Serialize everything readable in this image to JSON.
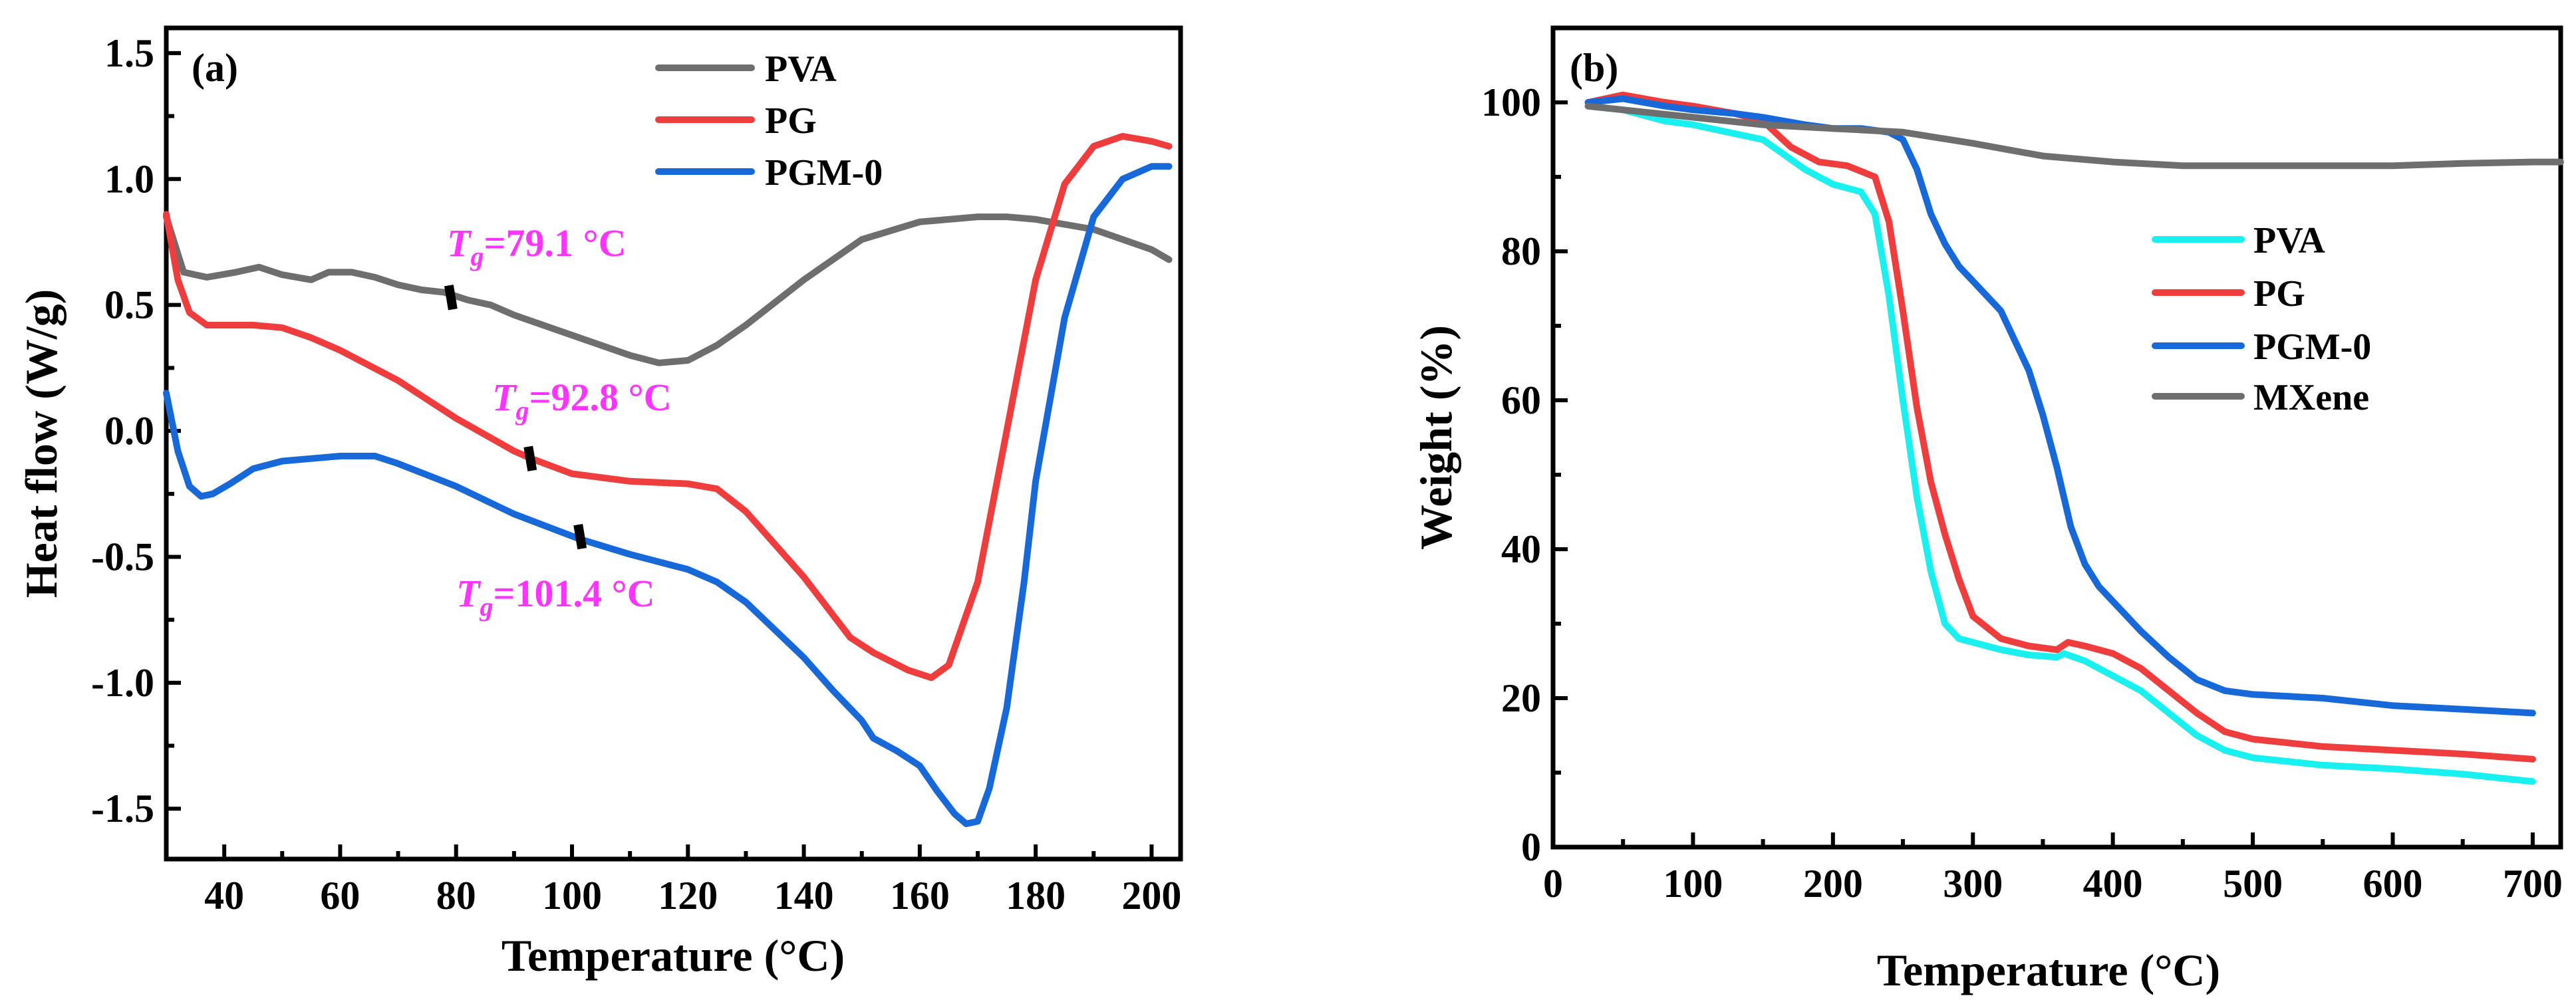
{
  "chart_data": [
    {
      "panel": "(a)",
      "type": "line",
      "title": "",
      "xlabel": "Temperature (°C)",
      "ylabel": "Heat flow (W/g)",
      "xlim": [
        30,
        205
      ],
      "ylim": [
        -1.7,
        1.6
      ],
      "xticks": [
        40,
        60,
        80,
        100,
        120,
        140,
        160,
        180,
        200
      ],
      "yticks": [
        -1.5,
        -1.0,
        -0.5,
        0.0,
        0.5,
        1.0,
        1.5
      ],
      "ytick_labels": [
        "-1.5",
        "-1.0",
        "-0.5",
        "0.0",
        "0.5",
        "1.0",
        "1.5"
      ],
      "legend": [
        "PVA",
        "PG",
        "PGM-0"
      ],
      "legend_position": "top-right",
      "series": [
        {
          "name": "PVA",
          "color": "#6e6e6e",
          "x": [
            30,
            33,
            37,
            42,
            46,
            50,
            55,
            58,
            62,
            66,
            70,
            74,
            78,
            82,
            86,
            90,
            100,
            110,
            115,
            120,
            125,
            130,
            140,
            150,
            160,
            170,
            175,
            180,
            190,
            200,
            203
          ],
          "y": [
            0.85,
            0.63,
            0.61,
            0.63,
            0.65,
            0.62,
            0.6,
            0.63,
            0.63,
            0.61,
            0.58,
            0.56,
            0.55,
            0.52,
            0.5,
            0.46,
            0.38,
            0.3,
            0.27,
            0.28,
            0.34,
            0.42,
            0.6,
            0.76,
            0.83,
            0.85,
            0.85,
            0.84,
            0.8,
            0.72,
            0.68
          ]
        },
        {
          "name": "PG",
          "color": "#ef3c3c",
          "x": [
            30,
            32,
            34,
            37,
            40,
            45,
            50,
            55,
            60,
            70,
            80,
            90,
            93,
            100,
            110,
            120,
            125,
            130,
            140,
            148,
            152,
            158,
            162,
            165,
            170,
            175,
            180,
            185,
            190,
            195,
            200,
            203
          ],
          "y": [
            0.86,
            0.6,
            0.47,
            0.42,
            0.42,
            0.42,
            0.41,
            0.37,
            0.32,
            0.2,
            0.05,
            -0.08,
            -0.11,
            -0.17,
            -0.2,
            -0.21,
            -0.23,
            -0.32,
            -0.58,
            -0.82,
            -0.88,
            -0.95,
            -0.98,
            -0.93,
            -0.6,
            0.0,
            0.6,
            0.98,
            1.13,
            1.17,
            1.15,
            1.13
          ]
        },
        {
          "name": "PGM-0",
          "color": "#1768d8",
          "x": [
            30,
            32,
            34,
            36,
            38,
            41,
            45,
            50,
            55,
            60,
            66,
            70,
            80,
            90,
            101.4,
            110,
            120,
            125,
            130,
            140,
            145,
            150,
            152,
            156,
            160,
            163,
            166,
            168,
            170,
            172,
            175,
            178,
            180,
            185,
            190,
            195,
            200,
            203
          ],
          "y": [
            0.15,
            -0.08,
            -0.22,
            -0.26,
            -0.25,
            -0.21,
            -0.15,
            -0.12,
            -0.11,
            -0.1,
            -0.1,
            -0.13,
            -0.22,
            -0.33,
            -0.43,
            -0.49,
            -0.55,
            -0.6,
            -0.68,
            -0.9,
            -1.03,
            -1.15,
            -1.22,
            -1.27,
            -1.33,
            -1.43,
            -1.52,
            -1.56,
            -1.55,
            -1.42,
            -1.1,
            -0.6,
            -0.2,
            0.45,
            0.85,
            1.0,
            1.05,
            1.05
          ]
        }
      ],
      "annotations": [
        {
          "T": "T",
          "sub": "g",
          "value": "=79.1 °C",
          "x": 79.1,
          "y": 0.53
        },
        {
          "T": "T",
          "sub": "g",
          "value": "=92.8 °C",
          "x": 92.8,
          "y": -0.11
        },
        {
          "T": "T",
          "sub": "g",
          "value": "=101.4 °C",
          "x": 101.4,
          "y": -0.42
        }
      ]
    },
    {
      "panel": "(b)",
      "type": "line",
      "title": "",
      "xlabel": "Temperature (°C)",
      "ylabel": "Weight (%)",
      "xlim": [
        0,
        720
      ],
      "ylim": [
        0,
        110
      ],
      "xticks": [
        0,
        100,
        200,
        300,
        400,
        500,
        600,
        700
      ],
      "yticks": [
        0,
        20,
        40,
        60,
        80,
        100
      ],
      "legend": [
        "PVA",
        "PG",
        "PGM-0",
        "MXene"
      ],
      "legend_position": "center-right",
      "series": [
        {
          "name": "PVA",
          "color": "#19f0f0",
          "x": [
            25,
            50,
            80,
            100,
            150,
            180,
            200,
            220,
            230,
            240,
            250,
            260,
            270,
            280,
            290,
            300,
            320,
            340,
            360,
            365,
            380,
            400,
            420,
            440,
            460,
            480,
            500,
            550,
            600,
            650,
            700
          ],
          "y": [
            99.5,
            99,
            97.5,
            97,
            95,
            91,
            89,
            88,
            85,
            74,
            60,
            47,
            37,
            30,
            28,
            27.5,
            26.5,
            25.8,
            25.5,
            26,
            25,
            23,
            21,
            18,
            15,
            13,
            12,
            11,
            10.5,
            9.8,
            8.8
          ]
        },
        {
          "name": "PG",
          "color": "#ef3c3c",
          "x": [
            25,
            50,
            80,
            100,
            130,
            150,
            170,
            190,
            210,
            230,
            240,
            250,
            260,
            270,
            280,
            290,
            300,
            320,
            340,
            360,
            368,
            380,
            400,
            420,
            440,
            460,
            480,
            500,
            550,
            600,
            650,
            700
          ],
          "y": [
            100,
            101,
            100,
            99.5,
            98.5,
            97.5,
            94,
            92,
            91.5,
            90,
            84,
            72,
            59,
            49,
            42,
            36,
            31,
            28,
            27,
            26.5,
            27.5,
            27,
            26,
            24,
            21,
            18,
            15.5,
            14.5,
            13.5,
            13,
            12.5,
            11.8
          ]
        },
        {
          "name": "PGM-0",
          "color": "#1768d8",
          "x": [
            25,
            50,
            80,
            100,
            130,
            150,
            180,
            200,
            220,
            240,
            250,
            260,
            270,
            280,
            290,
            300,
            320,
            340,
            350,
            360,
            370,
            380,
            390,
            400,
            420,
            440,
            460,
            480,
            500,
            550,
            600,
            650,
            700
          ],
          "y": [
            100,
            100.5,
            99.5,
            99,
            98.5,
            98,
            97,
            96.5,
            96.5,
            96,
            95,
            91,
            85,
            81,
            78,
            76,
            72,
            64,
            58,
            51,
            43,
            38,
            35,
            33,
            29,
            25.5,
            22.5,
            21,
            20.5,
            20,
            19,
            18.5,
            18
          ]
        },
        {
          "name": "MXene",
          "color": "#6e6e6e",
          "x": [
            25,
            50,
            100,
            150,
            200,
            250,
            300,
            350,
            400,
            450,
            500,
            550,
            600,
            650,
            700,
            720
          ],
          "y": [
            99.5,
            99,
            98,
            97,
            96.5,
            96,
            94.5,
            92.8,
            92,
            91.5,
            91.5,
            91.5,
            91.5,
            91.8,
            92,
            92
          ]
        }
      ]
    }
  ]
}
